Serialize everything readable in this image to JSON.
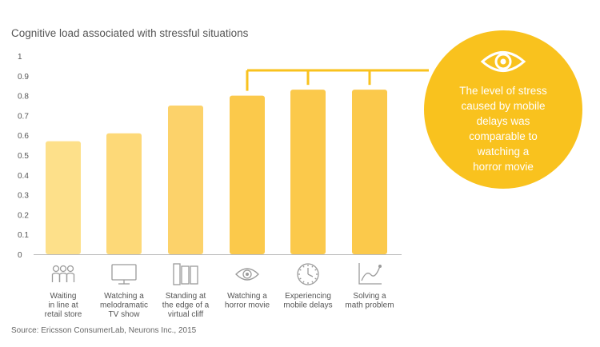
{
  "chart_data": {
    "type": "bar",
    "title": "Cognitive load associated with stressful situations",
    "categories": [
      "Waiting in line at retail store",
      "Watching a melodramatic TV show",
      "Standing at the edge of a virtual cliff",
      "Watching a horror movie",
      "Experiencing mobile delays",
      "Solving a math problem"
    ],
    "category_lines": [
      [
        "Waiting",
        "in line at",
        "retail store"
      ],
      [
        "Watching a",
        "melodramatic",
        "TV show"
      ],
      [
        "Standing at",
        "the edge of a",
        "virtual cliff"
      ],
      [
        "Watching a",
        "horror movie"
      ],
      [
        "Experiencing",
        "mobile delays"
      ],
      [
        "Solving a",
        "math problem"
      ]
    ],
    "category_icons": [
      "people-queue-icon",
      "tv-icon",
      "cliff-panels-icon",
      "eye-icon",
      "clock-icon",
      "graph-icon"
    ],
    "values": [
      0.57,
      0.61,
      0.75,
      0.8,
      0.83,
      0.83
    ],
    "bar_colors": [
      "#fde08a",
      "#fdd978",
      "#fcd26a",
      "#fbc94b",
      "#fbc94b",
      "#fbc94b"
    ],
    "ylim": [
      0,
      1
    ],
    "yticks": [
      "0",
      "0.1",
      "0.2",
      "0.3",
      "0.4",
      "0.5",
      "0.6",
      "0.7",
      "0.8",
      "0.9",
      "1"
    ],
    "xlabel": "",
    "ylabel": "",
    "grid": false,
    "bracket_bars": [
      3,
      4,
      5
    ],
    "callout": {
      "text": "The level of stress\ncaused by mobile\ndelays was\ncomparable to\nwatching a\nhorror movie",
      "icon": "eye-icon",
      "color": "#f9c21e"
    }
  },
  "source": "Source: Ericsson ConsumerLab, Neurons Inc., 2015"
}
